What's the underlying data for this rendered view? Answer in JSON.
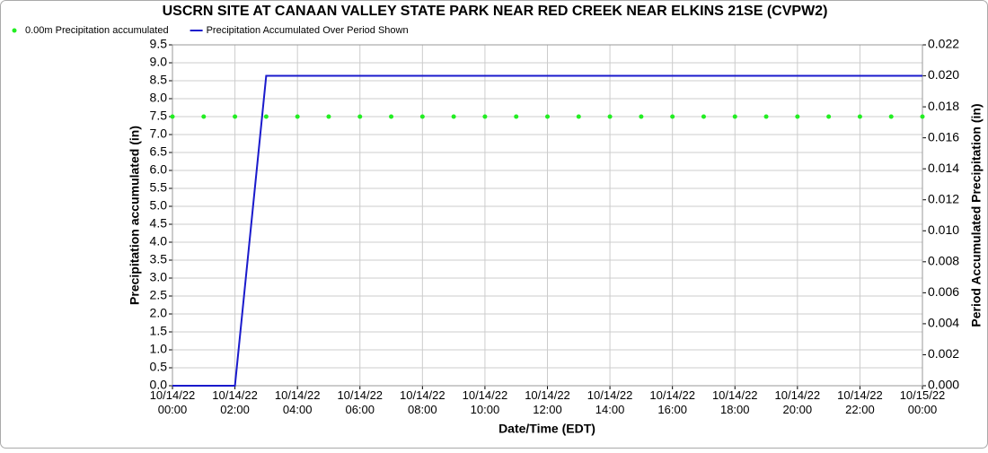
{
  "chart_data": {
    "type": "line",
    "title": "USCRN SITE AT CANAAN VALLEY STATE PARK NEAR RED CREEK NEAR ELKINS 21SE (CVPW2)",
    "xlabel": "Date/Time (EDT)",
    "ylabel": "Precipitation accumulated (in)",
    "y2label": "Period Accumulated Precipitation (in)",
    "grid": true,
    "legend": "top-left",
    "x": [
      "10/14/22 00:00",
      "10/14/22 01:00",
      "10/14/22 02:00",
      "10/14/22 03:00",
      "10/14/22 04:00",
      "10/14/22 05:00",
      "10/14/22 06:00",
      "10/14/22 07:00",
      "10/14/22 08:00",
      "10/14/22 09:00",
      "10/14/22 10:00",
      "10/14/22 11:00",
      "10/14/22 12:00",
      "10/14/22 13:00",
      "10/14/22 14:00",
      "10/14/22 15:00",
      "10/14/22 16:00",
      "10/14/22 17:00",
      "10/14/22 18:00",
      "10/14/22 19:00",
      "10/14/22 20:00",
      "10/14/22 21:00",
      "10/14/22 22:00",
      "10/14/22 23:00",
      "10/15/22 00:00"
    ],
    "xlim": [
      "10/14/22 00:00",
      "10/15/22 00:00"
    ],
    "xticks": [
      "10/14/22 00:00",
      "10/14/22 02:00",
      "10/14/22 04:00",
      "10/14/22 06:00",
      "10/14/22 08:00",
      "10/14/22 10:00",
      "10/14/22 12:00",
      "10/14/22 14:00",
      "10/14/22 16:00",
      "10/14/22 18:00",
      "10/14/22 20:00",
      "10/14/22 22:00",
      "10/15/22 00:00"
    ],
    "ylim": [
      0,
      9.5
    ],
    "yticks": [
      {
        "value": 0,
        "label": "0.0"
      },
      0.5,
      {
        "value": 1,
        "label": "1.0"
      },
      1.5,
      {
        "value": 2,
        "label": "2.0"
      },
      2.5,
      {
        "value": 3,
        "label": "3.0"
      },
      3.5,
      {
        "value": 4,
        "label": "4.0"
      },
      4.5,
      {
        "value": 5,
        "label": "5.0"
      },
      5.5,
      {
        "value": 6,
        "label": "6.0"
      },
      6.5,
      {
        "value": 7,
        "label": "7.0"
      },
      7.5,
      {
        "value": 8,
        "label": "8.0"
      },
      8.5,
      {
        "value": 9,
        "label": "9.0"
      },
      9.5
    ],
    "y2lim": [
      0,
      0.022
    ],
    "y2ticks": [
      {
        "value": 0,
        "label": "0.000"
      },
      0.002,
      0.004,
      0.006,
      0.008,
      {
        "value": 0.01,
        "label": "0.010"
      },
      0.012,
      0.014,
      0.016,
      0.018,
      {
        "value": 0.02,
        "label": "0.020"
      },
      0.022
    ],
    "series": [
      {
        "name": "0.00m Precipitation accumulated",
        "type": "scatter",
        "color": "#22ee22",
        "axis": "y",
        "values": [
          7.5,
          7.5,
          7.5,
          7.5,
          7.5,
          7.5,
          7.5,
          7.5,
          7.5,
          7.5,
          7.5,
          7.5,
          7.5,
          7.5,
          7.5,
          7.5,
          7.5,
          7.5,
          7.5,
          7.5,
          7.5,
          7.5,
          7.5,
          7.5,
          7.5
        ]
      },
      {
        "name": "Precipitation Accumulated Over Period Shown",
        "type": "line",
        "color": "#1a1acc",
        "axis": "y2",
        "values": [
          0,
          0,
          0,
          0.02,
          0.02,
          0.02,
          0.02,
          0.02,
          0.02,
          0.02,
          0.02,
          0.02,
          0.02,
          0.02,
          0.02,
          0.02,
          0.02,
          0.02,
          0.02,
          0.02,
          0.02,
          0.02,
          0.02,
          0.02,
          0.02
        ]
      }
    ]
  }
}
